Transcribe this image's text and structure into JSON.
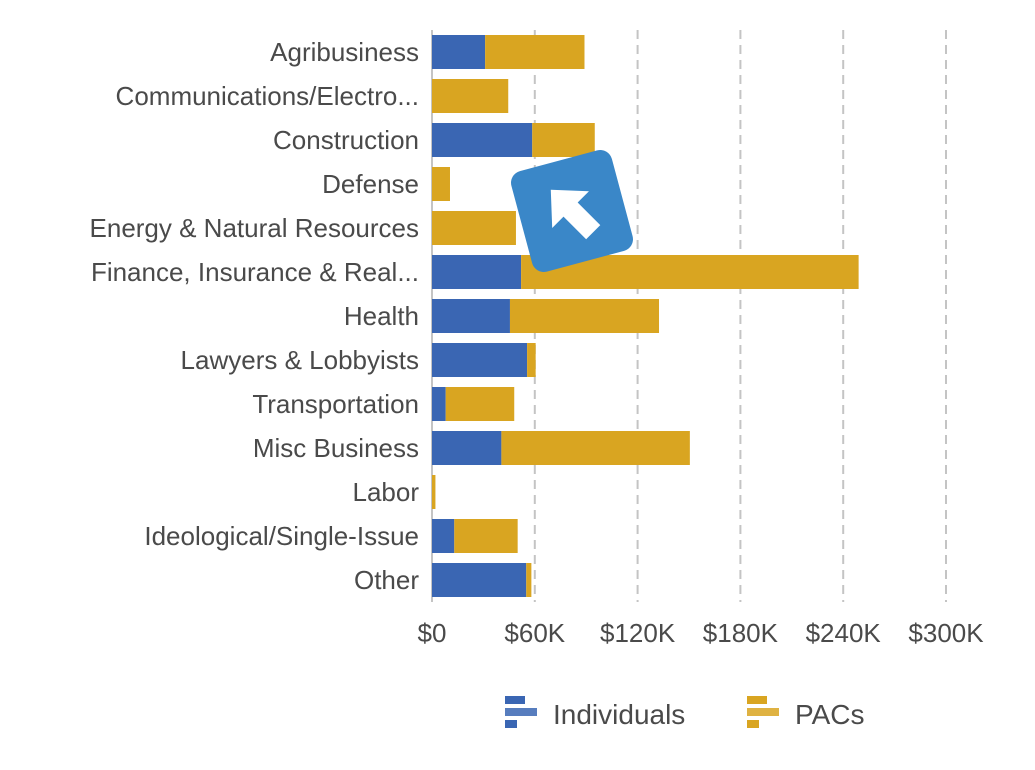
{
  "colors": {
    "individuals": "#3a66b3",
    "pacs": "#d9a521",
    "text": "#4a4a4a",
    "grid": "#c4c4c4",
    "overlay": "#3a87c8"
  },
  "overlay": {
    "icon": "back-arrow-icon"
  },
  "chart_data": {
    "type": "bar",
    "orientation": "horizontal",
    "stacked": true,
    "categories": [
      "Agribusiness",
      "Communications/Electro...",
      "Construction",
      "Defense",
      "Energy & Natural Resources",
      "Finance, Insurance & Real...",
      "Health",
      "Lawyers & Lobbyists",
      "Transportation",
      "Misc Business",
      "Labor",
      "Ideological/Single-Issue",
      "Other"
    ],
    "series": [
      {
        "name": "Individuals",
        "values": [
          31000,
          0,
          58500,
          0,
          0,
          52000,
          45500,
          55500,
          8000,
          40500,
          0,
          13000,
          55000
        ]
      },
      {
        "name": "PACs",
        "values": [
          58000,
          44500,
          36500,
          10500,
          49000,
          197000,
          87000,
          5000,
          40000,
          110000,
          2000,
          37000,
          3000
        ]
      }
    ],
    "xlim": [
      0,
      300000
    ],
    "xticks": [
      0,
      60000,
      120000,
      180000,
      240000,
      300000
    ],
    "xtick_labels": [
      "$0",
      "$60K",
      "$120K",
      "$180K",
      "$240K",
      "$300K"
    ],
    "grid": "vertical dashed",
    "legend": "bottom"
  }
}
